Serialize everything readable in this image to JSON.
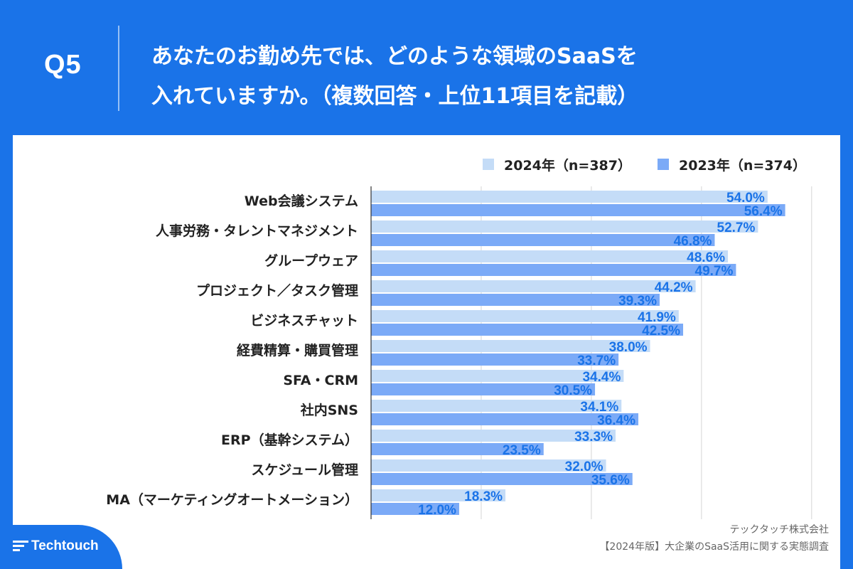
{
  "header": {
    "q_number": "Q5",
    "question_line1": "あなたのお勤め先では、どのような領域のSaaSを",
    "question_line2": "入れていますか。（複数回答・上位11項目を記載）"
  },
  "chart_data": {
    "type": "bar",
    "orientation": "horizontal",
    "title": "あなたのお勤め先では、どのような領域のSaaSを入れていますか。（複数回答・上位11項目を記載）",
    "categories": [
      "Web会議システム",
      "人事労務・タレントマネジメント",
      "グループウェア",
      "プロジェクト／タスク管理",
      "ビジネスチャット",
      "経費精算・購買管理",
      "SFA・CRM",
      "社内SNS",
      "ERP（基幹システム）",
      "スケジュール管理",
      "MA（マーケティングオートメーション）"
    ],
    "series": [
      {
        "name": "2024年（n=387）",
        "color": "#c4dcf7",
        "values": [
          54.0,
          52.7,
          48.6,
          44.2,
          41.9,
          38.0,
          34.4,
          34.1,
          33.3,
          32.0,
          18.3
        ],
        "labels": [
          "54.0%",
          "52.7%",
          "48.6%",
          "44.2%",
          "41.9%",
          "38.0%",
          "34.4%",
          "34.1%",
          "33.3%",
          "32.0%",
          "18.3%"
        ]
      },
      {
        "name": "2023年（n=374）",
        "color": "#7baaf7",
        "values": [
          56.4,
          46.8,
          49.7,
          39.3,
          42.5,
          33.7,
          30.5,
          36.4,
          23.5,
          35.6,
          12.0
        ],
        "labels": [
          "56.4%",
          "46.8%",
          "49.7%",
          "39.3%",
          "42.5%",
          "33.7%",
          "30.5%",
          "36.4%",
          "23.5%",
          "35.6%",
          "12.0%"
        ]
      }
    ],
    "xlim": [
      0,
      60
    ],
    "grid": true,
    "legend": "top-right",
    "label_color": "#1a73e8"
  },
  "footer": {
    "brand": "Techtouch",
    "company": "テックタッチ株式会社",
    "source": "【2024年版】大企業のSaaS活用に関する実態調査"
  },
  "colors": {
    "brand_blue": "#1a73e8",
    "panel_bg": "#ffffff"
  }
}
